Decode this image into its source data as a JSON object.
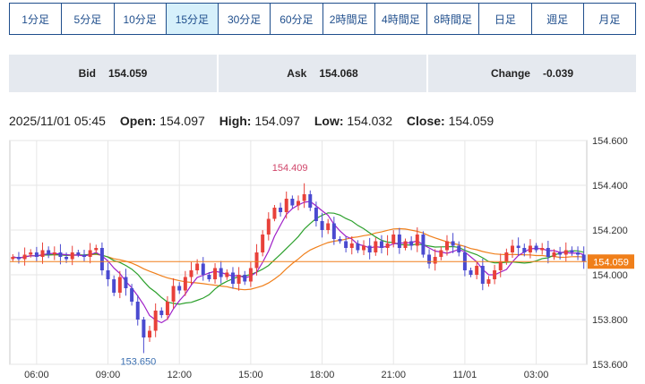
{
  "tabs": [
    {
      "label": "1分足"
    },
    {
      "label": "5分足"
    },
    {
      "label": "10分足"
    },
    {
      "label": "15分足"
    },
    {
      "label": "30分足"
    },
    {
      "label": "60分足"
    },
    {
      "label": "2時間足"
    },
    {
      "label": "4時間足"
    },
    {
      "label": "8時間足"
    },
    {
      "label": "日足"
    },
    {
      "label": "週足"
    },
    {
      "label": "月足"
    }
  ],
  "active_tab": "15分足",
  "quotes": {
    "bid_label": "Bid",
    "bid": "154.059",
    "ask_label": "Ask",
    "ask": "154.068",
    "change_label": "Change",
    "change": "-0.039"
  },
  "ohlc": {
    "datetime": "2025/11/01 05:45",
    "open_label": "Open:",
    "open": "154.097",
    "high_label": "High:",
    "high": "154.097",
    "low_label": "Low:",
    "low": "154.032",
    "close_label": "Close:",
    "close": "154.059"
  },
  "chart_data": {
    "type": "candlestick",
    "y_ticks": [
      "154.600",
      "154.400",
      "154.200",
      "154.000",
      "153.800",
      "153.600"
    ],
    "ylim": [
      153.6,
      154.6
    ],
    "x_ticks": [
      "06:00",
      "09:00",
      "12:00",
      "15:00",
      "18:00",
      "21:00",
      "11/01",
      "03:00"
    ],
    "x_tick_index": [
      4,
      16,
      28,
      40,
      52,
      64,
      76,
      88
    ],
    "annotations": {
      "high_label": "154.409",
      "high_index": 49,
      "high_value": 154.409,
      "low_label": "153.650",
      "low_index": 22,
      "low_value": 153.65
    },
    "current_price_label": "154.059",
    "current_price": 154.059,
    "colors": {
      "up": "#e8413a",
      "down": "#4a4ad0",
      "ma_fast": "#a020c8",
      "ma_mid": "#2ca02c",
      "ma_slow": "#f07f1a",
      "price_line": "#f07f1a",
      "price_tag": "#f07f1a"
    },
    "close": [
      154.08,
      154.07,
      154.09,
      154.1,
      154.08,
      154.11,
      154.09,
      154.1,
      154.08,
      154.07,
      154.1,
      154.09,
      154.08,
      154.11,
      154.12,
      154.02,
      153.98,
      153.92,
      153.99,
      153.94,
      153.88,
      153.8,
      153.72,
      153.75,
      153.84,
      153.82,
      153.88,
      153.95,
      153.93,
      153.99,
      154.02,
      154.05,
      154.0,
      153.98,
      154.03,
      153.99,
      154.01,
      153.96,
      154.0,
      153.97,
      154.03,
      154.1,
      154.18,
      154.25,
      154.3,
      154.28,
      154.34,
      154.31,
      154.33,
      154.36,
      154.3,
      154.24,
      154.2,
      154.23,
      154.16,
      154.15,
      154.12,
      154.14,
      154.11,
      154.13,
      154.1,
      154.15,
      154.12,
      154.14,
      154.18,
      154.12,
      154.15,
      154.13,
      154.18,
      154.09,
      154.05,
      154.08,
      154.11,
      154.15,
      154.13,
      154.1,
      154.02,
      154.0,
      154.04,
      153.96,
      153.98,
      154.02,
      154.06,
      154.1,
      154.13,
      154.12,
      154.1,
      154.13,
      154.11,
      154.12,
      154.08,
      154.1,
      154.09,
      154.11,
      154.1,
      154.09,
      154.06
    ]
  }
}
